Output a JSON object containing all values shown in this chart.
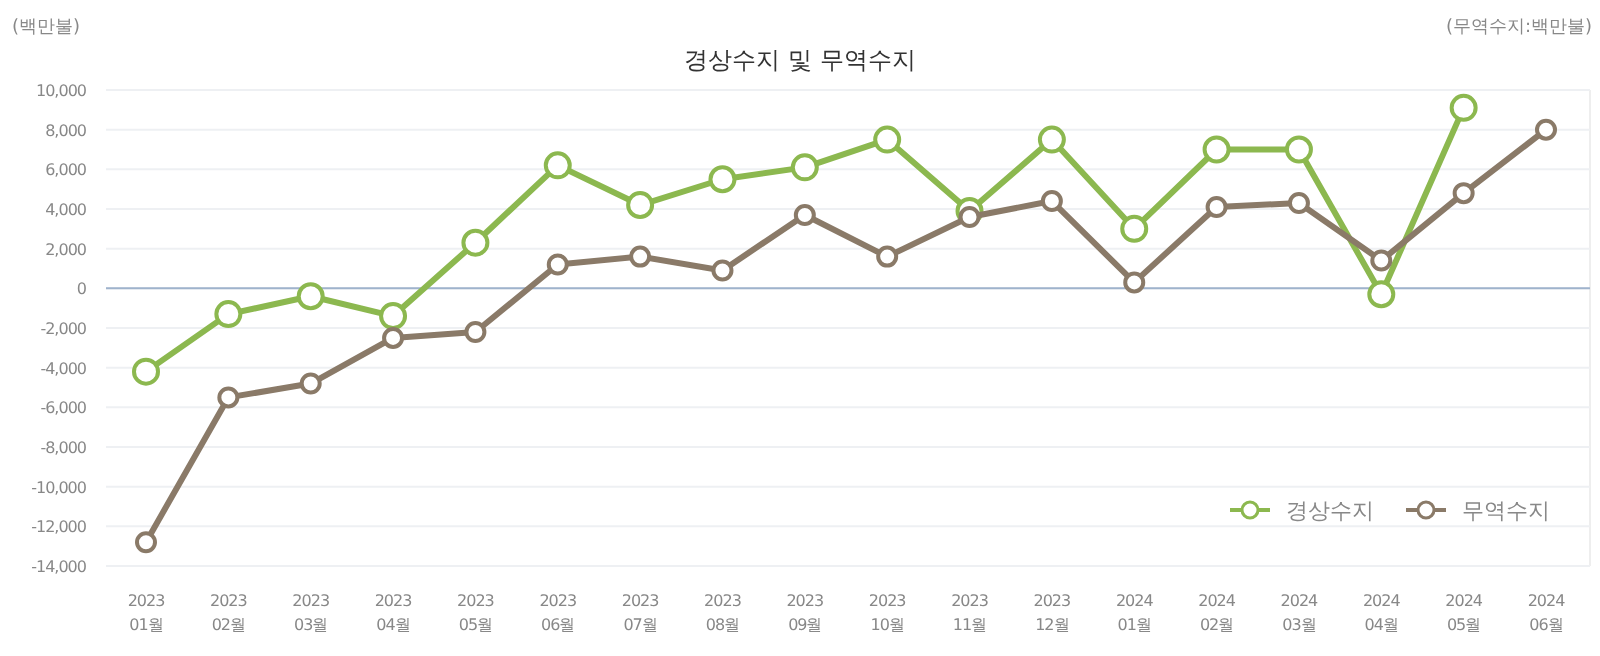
{
  "chart_data": {
    "type": "line",
    "title": "경상수지 및 무역수지",
    "ylabel": "(백만불)",
    "annotations": [
      "(무역수지:백만불)"
    ],
    "categories": [
      "2023\n01월",
      "2023\n02월",
      "2023\n03월",
      "2023\n04월",
      "2023\n05월",
      "2023\n06월",
      "2023\n07월",
      "2023\n08월",
      "2023\n09월",
      "2023\n10월",
      "2023\n11월",
      "2023\n12월",
      "2024\n01월",
      "2024\n02월",
      "2024\n03월",
      "2024\n04월",
      "2024\n05월",
      "2024\n06월"
    ],
    "series": [
      {
        "name": "경상수지",
        "color": "#8cb84f",
        "values": [
          -4200,
          -1300,
          -400,
          -1400,
          2300,
          6200,
          4200,
          5500,
          6100,
          7500,
          3900,
          7500,
          3000,
          7000,
          7000,
          -300,
          9100,
          null
        ]
      },
      {
        "name": "무역수지",
        "color": "#8a7a68",
        "values": [
          -12800,
          -5500,
          -4800,
          -2500,
          -2200,
          1200,
          1600,
          900,
          3700,
          1600,
          3600,
          4400,
          300,
          4100,
          4300,
          1400,
          4800,
          8000
        ]
      }
    ],
    "ylim": [
      -14000,
      10000
    ],
    "yticks": [
      {
        "value": 10000,
        "label": "10,000"
      },
      {
        "value": 8000,
        "label": "8,000"
      },
      {
        "value": 6000,
        "label": "6,000"
      },
      {
        "value": 4000,
        "label": "4,000"
      },
      {
        "value": 2000,
        "label": "2,000"
      },
      0,
      {
        "value": -2000,
        "label": "-2,000"
      },
      {
        "value": -4000,
        "label": "-4,000"
      },
      {
        "value": -6000,
        "label": "-6,000"
      },
      {
        "value": -8000,
        "label": "-8,000"
      },
      {
        "value": -10000,
        "label": "-10,000"
      },
      {
        "value": -12000,
        "label": "-12,000"
      },
      {
        "value": -14000,
        "label": "-14,000"
      }
    ],
    "ref_lines": [
      {
        "axis": "y",
        "value": 0,
        "color": "#9fb3cc"
      }
    ],
    "grid": "y",
    "legend": "bottom right",
    "marker": "circle",
    "line_style": "solid"
  }
}
